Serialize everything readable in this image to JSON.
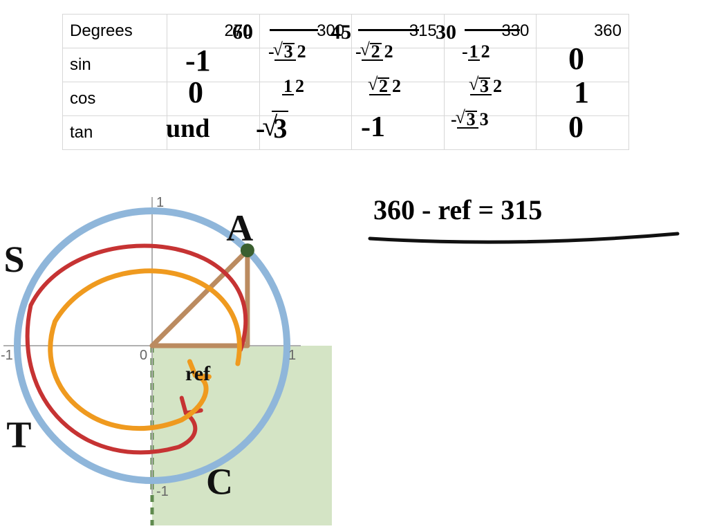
{
  "table": {
    "border_color": "#d7d7d7",
    "header": {
      "label": "Degrees",
      "cells": [
        "270",
        "300",
        "315",
        "330",
        "360"
      ]
    },
    "rows": [
      {
        "label": "sin",
        "cells": [
          "",
          "",
          "",
          "",
          ""
        ]
      },
      {
        "label": "cos",
        "cells": [
          "",
          "",
          "",
          "",
          ""
        ]
      },
      {
        "label": "tan",
        "cells": [
          "",
          "",
          "",
          "",
          ""
        ]
      }
    ],
    "handwritten_header_notes": {
      "after_300": "60",
      "after_315": "45",
      "after_330": "30"
    },
    "handwritten_cells": {
      "sin": [
        "-1",
        "-√3/2",
        "-√2/2",
        "-1/2",
        "0"
      ],
      "cos": [
        "0",
        "1/2",
        "√2/2",
        "√3/2",
        "1"
      ],
      "tan": [
        "und",
        "-√3",
        "-1",
        "-√3/3",
        "0"
      ]
    }
  },
  "equation": {
    "text_left": "360 - ref",
    "text_right": "= 315"
  },
  "circle": {
    "radius": 1,
    "center_label": "0",
    "axis_labels": {
      "top": "1",
      "right": "1",
      "bottom": "-1",
      "left": "-1"
    },
    "quadrant_labels": {
      "q1": "A",
      "q2": "S",
      "q3": "T",
      "q4": "C"
    },
    "ref_label": "ref",
    "angle_deg": 315,
    "colors": {
      "circle": "#8fb6da",
      "quad_fill": "#c6dbb2",
      "quad_fill_opacity": 0.75,
      "quad_dash": "#5f8a4e",
      "triangle": "#bb8b60",
      "spiral_outer": "#c63333",
      "spiral_inner": "#ef9a1f",
      "point": "#3a5f2f",
      "ink": "#111111"
    }
  }
}
